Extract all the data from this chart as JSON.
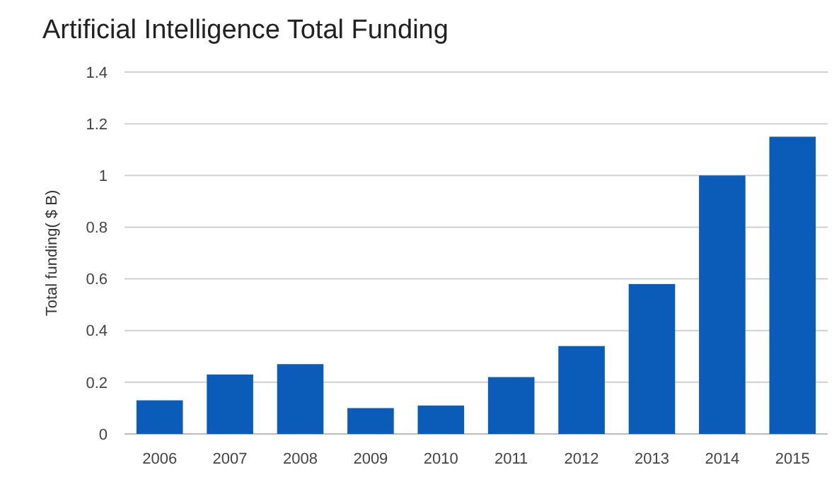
{
  "chart_data": {
    "type": "bar",
    "title": "Artificial Intelligence Total Funding",
    "ylabel": "Total funding( $ B)",
    "categories": [
      "2006",
      "2007",
      "2008",
      "2009",
      "2010",
      "2011",
      "2012",
      "2013",
      "2014",
      "2015"
    ],
    "values": [
      0.13,
      0.23,
      0.27,
      0.1,
      0.11,
      0.22,
      0.34,
      0.58,
      1.0,
      1.15
    ],
    "color": "#0b5cb8",
    "ylim": [
      0,
      1.4
    ],
    "yticks": [
      0,
      0.2,
      0.4,
      0.6,
      0.8,
      1,
      1.2,
      1.4
    ],
    "grid": "y"
  }
}
